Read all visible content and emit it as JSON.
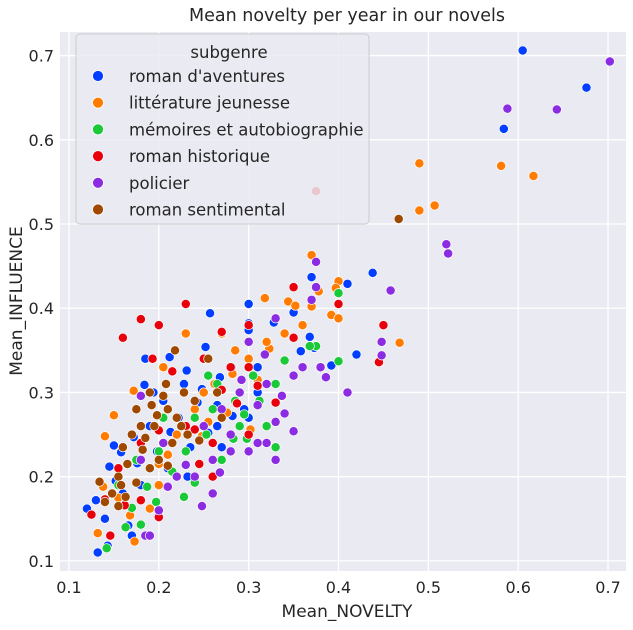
{
  "chart_data": {
    "type": "scatter",
    "title": "Mean novelty per year in our novels",
    "xlabel": "Mean_NOVELTY",
    "ylabel": "Mean_INFLUENCE",
    "xlim": [
      0.09,
      0.72
    ],
    "ylim": [
      0.088,
      0.728
    ],
    "xticks": [
      "0.1",
      "0.2",
      "0.3",
      "0.4",
      "0.5",
      "0.6",
      "0.7"
    ],
    "yticks": [
      "0.1",
      "0.2",
      "0.3",
      "0.4",
      "0.5",
      "0.6",
      "0.7"
    ],
    "grid": true,
    "legend": {
      "title": "subgenre",
      "placement": "upper-left"
    },
    "series": [
      {
        "name": "roman d'aventures",
        "color": "#023eff",
        "points": [
          [
            0.605,
            0.706
          ],
          [
            0.676,
            0.662
          ],
          [
            0.584,
            0.613
          ],
          [
            0.438,
            0.442
          ],
          [
            0.41,
            0.429
          ],
          [
            0.37,
            0.437
          ],
          [
            0.35,
            0.395
          ],
          [
            0.328,
            0.383
          ],
          [
            0.3,
            0.382
          ],
          [
            0.3,
            0.374
          ],
          [
            0.3,
            0.405
          ],
          [
            0.257,
            0.394
          ],
          [
            0.368,
            0.366
          ],
          [
            0.373,
            0.353
          ],
          [
            0.392,
            0.332
          ],
          [
            0.42,
            0.345
          ],
          [
            0.38,
            0.329
          ],
          [
            0.358,
            0.349
          ],
          [
            0.31,
            0.33
          ],
          [
            0.281,
            0.33
          ],
          [
            0.252,
            0.354
          ],
          [
            0.231,
            0.326
          ],
          [
            0.212,
            0.342
          ],
          [
            0.184,
            0.309
          ],
          [
            0.15,
            0.237
          ],
          [
            0.13,
            0.172
          ],
          [
            0.12,
            0.162
          ],
          [
            0.14,
            0.15
          ],
          [
            0.132,
            0.11
          ],
          [
            0.143,
            0.118
          ],
          [
            0.166,
            0.142
          ],
          [
            0.17,
            0.13
          ],
          [
            0.145,
            0.212
          ],
          [
            0.158,
            0.229
          ],
          [
            0.172,
            0.247
          ],
          [
            0.19,
            0.26
          ],
          [
            0.205,
            0.29
          ],
          [
            0.222,
            0.27
          ],
          [
            0.243,
            0.288
          ],
          [
            0.265,
            0.26
          ],
          [
            0.282,
            0.272
          ],
          [
            0.295,
            0.28
          ],
          [
            0.228,
            0.31
          ],
          [
            0.248,
            0.304
          ],
          [
            0.198,
            0.23
          ],
          [
            0.176,
            0.216
          ],
          [
            0.16,
            0.18
          ],
          [
            0.21,
            0.21
          ],
          [
            0.235,
            0.235
          ],
          [
            0.27,
            0.235
          ],
          [
            0.3,
            0.27
          ],
          [
            0.31,
            0.3
          ],
          [
            0.194,
            0.3
          ],
          [
            0.185,
            0.34
          ],
          [
            0.268,
            0.318
          ],
          [
            0.213,
            0.253
          ],
          [
            0.255,
            0.252
          ],
          [
            0.232,
            0.2
          ],
          [
            0.18,
            0.19
          ],
          [
            0.152,
            0.195
          ],
          [
            0.265,
            0.285
          ]
        ]
      },
      {
        "name": "littérature jeunesse",
        "color": "#ff7c00",
        "points": [
          [
            0.49,
            0.572
          ],
          [
            0.581,
            0.569
          ],
          [
            0.617,
            0.557
          ],
          [
            0.507,
            0.522
          ],
          [
            0.49,
            0.516
          ],
          [
            0.37,
            0.463
          ],
          [
            0.4,
            0.432
          ],
          [
            0.397,
            0.424
          ],
          [
            0.378,
            0.42
          ],
          [
            0.344,
            0.408
          ],
          [
            0.392,
            0.392
          ],
          [
            0.352,
            0.403
          ],
          [
            0.37,
            0.402
          ],
          [
            0.468,
            0.359
          ],
          [
            0.4,
            0.388
          ],
          [
            0.318,
            0.412
          ],
          [
            0.27,
            0.37
          ],
          [
            0.23,
            0.37
          ],
          [
            0.285,
            0.35
          ],
          [
            0.323,
            0.352
          ],
          [
            0.205,
            0.33
          ],
          [
            0.172,
            0.302
          ],
          [
            0.15,
            0.273
          ],
          [
            0.14,
            0.248
          ],
          [
            0.138,
            0.188
          ],
          [
            0.132,
            0.133
          ],
          [
            0.155,
            0.175
          ],
          [
            0.168,
            0.154
          ],
          [
            0.173,
            0.123
          ],
          [
            0.19,
            0.162
          ],
          [
            0.2,
            0.19
          ],
          [
            0.21,
            0.226
          ],
          [
            0.22,
            0.25
          ],
          [
            0.24,
            0.28
          ],
          [
            0.25,
            0.3
          ],
          [
            0.262,
            0.31
          ],
          [
            0.282,
            0.322
          ],
          [
            0.3,
            0.34
          ],
          [
            0.32,
            0.36
          ],
          [
            0.34,
            0.37
          ],
          [
            0.36,
            0.38
          ],
          [
            0.31,
            0.315
          ],
          [
            0.276,
            0.276
          ],
          [
            0.23,
            0.23
          ],
          [
            0.255,
            0.265
          ],
          [
            0.2,
            0.215
          ],
          [
            0.29,
            0.3
          ],
          [
            0.302,
            0.256
          ],
          [
            0.248,
            0.248
          ]
        ]
      },
      {
        "name": "mémoires et autobiographie",
        "color": "#1ac938",
        "points": [
          [
            0.4,
            0.418
          ],
          [
            0.375,
            0.355
          ],
          [
            0.4,
            0.337
          ],
          [
            0.368,
            0.355
          ],
          [
            0.34,
            0.338
          ],
          [
            0.33,
            0.31
          ],
          [
            0.312,
            0.29
          ],
          [
            0.295,
            0.274
          ],
          [
            0.33,
            0.235
          ],
          [
            0.29,
            0.26
          ],
          [
            0.265,
            0.31
          ],
          [
            0.253,
            0.25
          ],
          [
            0.24,
            0.27
          ],
          [
            0.23,
            0.23
          ],
          [
            0.2,
            0.23
          ],
          [
            0.215,
            0.206
          ],
          [
            0.187,
            0.188
          ],
          [
            0.17,
            0.163
          ],
          [
            0.142,
            0.115
          ],
          [
            0.163,
            0.14
          ],
          [
            0.18,
            0.143
          ],
          [
            0.197,
            0.17
          ],
          [
            0.228,
            0.176
          ],
          [
            0.24,
            0.193
          ],
          [
            0.27,
            0.22
          ],
          [
            0.283,
            0.245
          ],
          [
            0.298,
            0.245
          ],
          [
            0.32,
            0.26
          ],
          [
            0.305,
            0.32
          ],
          [
            0.255,
            0.32
          ],
          [
            0.205,
            0.27
          ],
          [
            0.175,
            0.22
          ],
          [
            0.155,
            0.19
          ],
          [
            0.26,
            0.28
          ],
          [
            0.285,
            0.29
          ]
        ]
      },
      {
        "name": "roman historique",
        "color": "#e8000b",
        "points": [
          [
            0.375,
            0.539
          ],
          [
            0.45,
            0.38
          ],
          [
            0.445,
            0.336
          ],
          [
            0.4,
            0.405
          ],
          [
            0.35,
            0.425
          ],
          [
            0.35,
            0.365
          ],
          [
            0.3,
            0.33
          ],
          [
            0.28,
            0.33
          ],
          [
            0.3,
            0.38
          ],
          [
            0.27,
            0.372
          ],
          [
            0.23,
            0.405
          ],
          [
            0.2,
            0.38
          ],
          [
            0.18,
            0.387
          ],
          [
            0.16,
            0.365
          ],
          [
            0.193,
            0.34
          ],
          [
            0.25,
            0.34
          ],
          [
            0.27,
            0.303
          ],
          [
            0.23,
            0.26
          ],
          [
            0.2,
            0.255
          ],
          [
            0.18,
            0.24
          ],
          [
            0.155,
            0.21
          ],
          [
            0.14,
            0.173
          ],
          [
            0.125,
            0.155
          ],
          [
            0.146,
            0.13
          ],
          [
            0.18,
            0.172
          ],
          [
            0.2,
            0.152
          ],
          [
            0.22,
            0.2
          ],
          [
            0.24,
            0.256
          ],
          [
            0.26,
            0.24
          ],
          [
            0.287,
            0.287
          ],
          [
            0.31,
            0.308
          ],
          [
            0.33,
            0.288
          ],
          [
            0.3,
            0.25
          ],
          [
            0.26,
            0.2
          ],
          [
            0.162,
            0.166
          ],
          [
            0.215,
            0.325
          ],
          [
            0.245,
            0.215
          ]
        ]
      },
      {
        "name": "policier",
        "color": "#8b2be2",
        "points": [
          [
            0.702,
            0.693
          ],
          [
            0.588,
            0.637
          ],
          [
            0.643,
            0.636
          ],
          [
            0.52,
            0.476
          ],
          [
            0.522,
            0.465
          ],
          [
            0.458,
            0.421
          ],
          [
            0.448,
            0.36
          ],
          [
            0.448,
            0.344
          ],
          [
            0.41,
            0.3
          ],
          [
            0.375,
            0.455
          ],
          [
            0.375,
            0.425
          ],
          [
            0.37,
            0.41
          ],
          [
            0.33,
            0.388
          ],
          [
            0.3,
            0.36
          ],
          [
            0.36,
            0.33
          ],
          [
            0.38,
            0.33
          ],
          [
            0.386,
            0.318
          ],
          [
            0.35,
            0.32
          ],
          [
            0.32,
            0.31
          ],
          [
            0.33,
            0.265
          ],
          [
            0.35,
            0.254
          ],
          [
            0.31,
            0.24
          ],
          [
            0.28,
            0.25
          ],
          [
            0.3,
            0.23
          ],
          [
            0.33,
            0.22
          ],
          [
            0.26,
            0.22
          ],
          [
            0.24,
            0.2
          ],
          [
            0.26,
            0.18
          ],
          [
            0.2,
            0.16
          ],
          [
            0.22,
            0.2
          ],
          [
            0.185,
            0.13
          ],
          [
            0.19,
            0.13
          ],
          [
            0.18,
            0.22
          ],
          [
            0.25,
            0.26
          ],
          [
            0.27,
            0.28
          ],
          [
            0.29,
            0.3
          ],
          [
            0.31,
            0.285
          ],
          [
            0.34,
            0.275
          ],
          [
            0.292,
            0.315
          ],
          [
            0.318,
            0.345
          ],
          [
            0.337,
            0.296
          ],
          [
            0.28,
            0.23
          ],
          [
            0.248,
            0.165
          ],
          [
            0.23,
            0.214
          ],
          [
            0.205,
            0.24
          ],
          [
            0.18,
            0.296
          ],
          [
            0.21,
            0.188
          ],
          [
            0.268,
            0.205
          ],
          [
            0.32,
            0.24
          ]
        ]
      },
      {
        "name": "roman sentimental",
        "color": "#9f4800",
        "points": [
          [
            0.467,
            0.506
          ],
          [
            0.218,
            0.35
          ],
          [
            0.208,
            0.31
          ],
          [
            0.19,
            0.3
          ],
          [
            0.192,
            0.285
          ],
          [
            0.21,
            0.28
          ],
          [
            0.22,
            0.27
          ],
          [
            0.195,
            0.26
          ],
          [
            0.18,
            0.26
          ],
          [
            0.185,
            0.246
          ],
          [
            0.17,
            0.25
          ],
          [
            0.16,
            0.235
          ],
          [
            0.165,
            0.215
          ],
          [
            0.155,
            0.2
          ],
          [
            0.148,
            0.18
          ],
          [
            0.14,
            0.17
          ],
          [
            0.155,
            0.165
          ],
          [
            0.158,
            0.19
          ],
          [
            0.2,
            0.22
          ],
          [
            0.215,
            0.24
          ],
          [
            0.225,
            0.26
          ],
          [
            0.24,
            0.29
          ],
          [
            0.265,
            0.3
          ],
          [
            0.255,
            0.34
          ],
          [
            0.232,
            0.25
          ],
          [
            0.21,
            0.213
          ],
          [
            0.19,
            0.21
          ],
          [
            0.175,
            0.193
          ],
          [
            0.163,
            0.176
          ],
          [
            0.134,
            0.194
          ],
          [
            0.198,
            0.273
          ],
          [
            0.182,
            0.232
          ],
          [
            0.205,
            0.296
          ],
          [
            0.228,
            0.3
          ],
          [
            0.175,
            0.28
          ],
          [
            0.245,
            0.243
          ],
          [
            0.27,
            0.27
          ]
        ]
      }
    ]
  }
}
